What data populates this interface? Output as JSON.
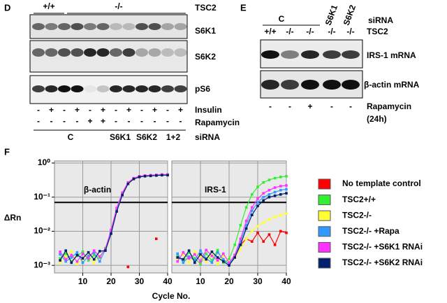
{
  "panel_d": {
    "label": "D",
    "genotypes": [
      "+/+",
      "-/-"
    ],
    "genotype_title": "TSC2",
    "blots": [
      "S6K1",
      "S6K2",
      "pS6"
    ],
    "insulin": [
      "-",
      "+",
      "-",
      "+",
      "-",
      "+",
      "-",
      "+",
      "-",
      "+",
      "-",
      "+"
    ],
    "rapamycin": [
      "-",
      "-",
      "-",
      "-",
      "+",
      "+",
      "-",
      "-",
      "-",
      "-",
      "-",
      "-"
    ],
    "row_labels": [
      "Insulin",
      "Rapamycin",
      "siRNA"
    ],
    "sirna_groups": [
      "C",
      "S6K1",
      "S6K2",
      "1+2"
    ]
  },
  "panel_e": {
    "label": "E",
    "sirna_groups": [
      "C",
      "S6K1",
      "S6K2"
    ],
    "sirna_title": "siRNA",
    "genotypes": [
      "+/+",
      "-/-",
      "-/-",
      "-/-",
      "-/-"
    ],
    "genotype_title": "TSC2",
    "blots": [
      "IRS-1 mRNA",
      "β-actin mRNA"
    ],
    "rapamycin": [
      "-",
      "-",
      "+",
      "-",
      "-"
    ],
    "rapamycin_label": "Rapamycin",
    "rapamycin_time": "(24h)"
  },
  "panel_f": {
    "label": "F",
    "y_label": "ΔRn",
    "x_label": "Cycle No."
  },
  "chart_data": [
    {
      "type": "line",
      "title": "β-actin",
      "log_y": true,
      "grid": true,
      "threshold": 0.07,
      "x": [
        2,
        4,
        6,
        8,
        10,
        12,
        14,
        16,
        18,
        20,
        22,
        24,
        26,
        28,
        30,
        32,
        34,
        36,
        38,
        40
      ],
      "xlim": [
        0,
        40
      ],
      "xticks": [
        10,
        20,
        30,
        40
      ],
      "ylim": [
        0.0006,
        1.15
      ],
      "yticks": [
        {
          "value": 0.001,
          "label": "10⁻³"
        },
        {
          "value": 0.01,
          "label": "10⁻²"
        },
        {
          "value": 0.1,
          "label": "10⁻¹"
        },
        {
          "value": 1,
          "label": "10⁰"
        }
      ],
      "series": [
        {
          "color": "#ff0000",
          "values": [
            null,
            null,
            null,
            null,
            null,
            null,
            null,
            null,
            null,
            null,
            null,
            null,
            0.0009,
            null,
            null,
            null,
            null,
            0.006,
            null,
            null
          ]
        },
        {
          "color": "#33ee33",
          "values": [
            0.0016,
            0.0022,
            0.0013,
            0.0019,
            0.0025,
            0.0014,
            0.002,
            0.0017,
            0.0032,
            0.01,
            0.045,
            0.13,
            0.26,
            0.35,
            0.4,
            0.42,
            0.43,
            0.44,
            0.45,
            0.45
          ]
        },
        {
          "color": "#ffff33",
          "values": [
            0.0012,
            0.0018,
            0.0026,
            0.0011,
            0.0015,
            0.0021,
            0.0012,
            0.0019,
            0.0028,
            0.009,
            0.04,
            0.12,
            0.25,
            0.34,
            0.39,
            0.41,
            0.42,
            0.43,
            0.44,
            0.44
          ]
        },
        {
          "color": "#3399ff",
          "values": [
            0.0021,
            0.0013,
            0.0017,
            0.0024,
            0.0012,
            0.0019,
            0.0023,
            0.0013,
            0.0029,
            0.0095,
            0.042,
            0.125,
            0.255,
            0.345,
            0.395,
            0.415,
            0.425,
            0.435,
            0.445,
            0.445
          ]
        },
        {
          "color": "#ff33ff",
          "values": [
            0.0025,
            0.0015,
            0.002,
            0.0013,
            0.0022,
            0.0016,
            0.0027,
            0.0018,
            0.003,
            0.011,
            0.048,
            0.135,
            0.27,
            0.36,
            0.41,
            0.43,
            0.44,
            0.45,
            0.46,
            0.46
          ]
        },
        {
          "color": "#00206e",
          "values": [
            0.0014,
            0.0027,
            0.0012,
            0.002,
            0.0016,
            0.0024,
            0.0015,
            0.0026,
            0.0027,
            0.0085,
            0.038,
            0.115,
            0.245,
            0.34,
            0.39,
            0.41,
            0.42,
            0.43,
            0.44,
            0.44
          ]
        }
      ]
    },
    {
      "type": "line",
      "title": "IRS-1",
      "log_y": true,
      "grid": true,
      "threshold": 0.07,
      "x": [
        2,
        4,
        6,
        8,
        10,
        12,
        14,
        16,
        18,
        20,
        22,
        24,
        26,
        28,
        30,
        32,
        34,
        36,
        38,
        40
      ],
      "xlim": [
        0,
        40
      ],
      "xticks": [
        10,
        20,
        30,
        40
      ],
      "ylim": [
        0.0006,
        1.15
      ],
      "yticks": [
        0.001,
        0.01,
        0.1,
        1
      ],
      "series": [
        {
          "name": "No template control",
          "color": "#ff0000",
          "values": [
            null,
            null,
            null,
            null,
            null,
            null,
            null,
            null,
            null,
            0.0011,
            0.002,
            0.004,
            0.006,
            0.005,
            0.009,
            0.005,
            0.008,
            0.004,
            0.01,
            0.009
          ]
        },
        {
          "name": "TSC2+/+",
          "color": "#33ee33",
          "values": [
            0.0019,
            0.0013,
            0.0024,
            0.0016,
            0.0011,
            0.0022,
            0.0014,
            0.0028,
            0.0012,
            0.0015,
            0.004,
            0.015,
            0.05,
            0.12,
            0.2,
            0.27,
            0.32,
            0.36,
            0.39,
            0.41
          ]
        },
        {
          "name": "TSC2-/-",
          "color": "#ffff33",
          "values": [
            0.0015,
            0.0021,
            0.0012,
            0.0026,
            0.0018,
            0.0013,
            0.0023,
            0.0011,
            0.0019,
            0.0013,
            0.0016,
            0.003,
            0.006,
            0.01,
            0.014,
            0.018,
            0.022,
            0.026,
            0.03,
            0.033
          ]
        },
        {
          "name": "TSC2-/- +Rapa",
          "color": "#3399ff",
          "values": [
            0.0022,
            0.0012,
            0.0018,
            0.0014,
            0.0027,
            0.0016,
            0.0012,
            0.0024,
            0.0015,
            0.0011,
            0.0018,
            0.005,
            0.015,
            0.04,
            0.07,
            0.1,
            0.12,
            0.14,
            0.16,
            0.17
          ]
        },
        {
          "name": "TSC2-/- +S6K1 RNAi",
          "color": "#ff33ff",
          "values": [
            0.0013,
            0.0024,
            0.0016,
            0.0021,
            0.0013,
            0.0028,
            0.0019,
            0.0014,
            0.0022,
            0.0012,
            0.002,
            0.006,
            0.02,
            0.05,
            0.09,
            0.13,
            0.16,
            0.19,
            0.21,
            0.22
          ]
        },
        {
          "name": "TSC2-/- +S6K2 RNAi",
          "color": "#00206e",
          "values": [
            0.0017,
            0.0015,
            0.0027,
            0.0012,
            0.0021,
            0.0015,
            0.0025,
            0.0017,
            0.0013,
            0.001,
            0.0017,
            0.004,
            0.012,
            0.03,
            0.055,
            0.08,
            0.1,
            0.11,
            0.12,
            0.13
          ]
        }
      ]
    }
  ]
}
